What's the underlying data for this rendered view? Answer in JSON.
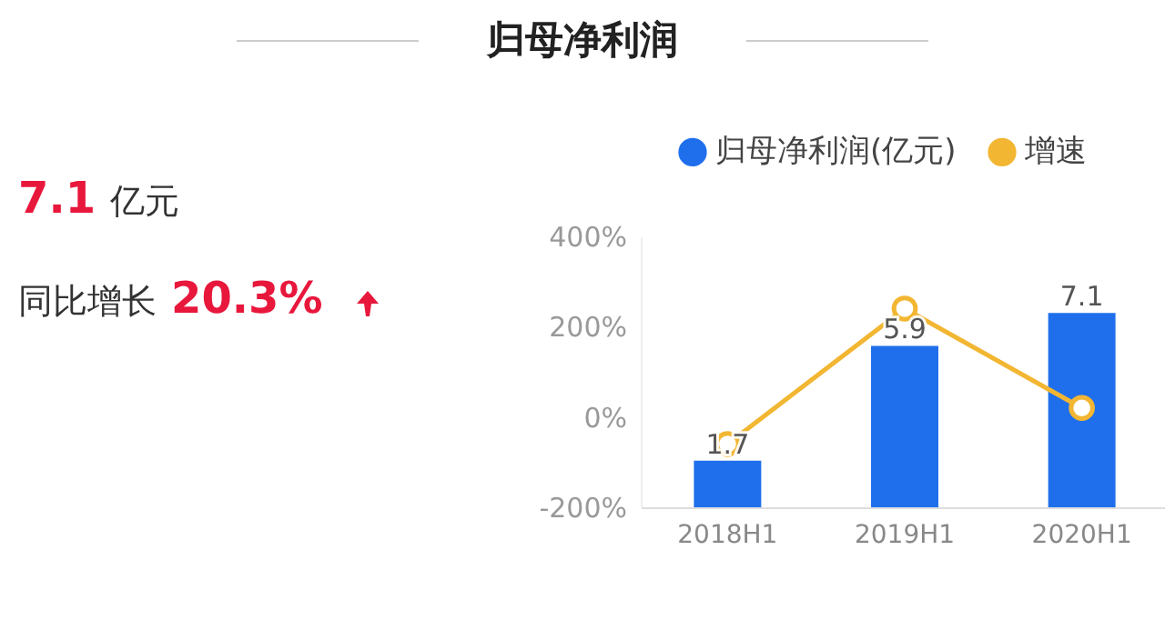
{
  "chart_data": {
    "type": "bar",
    "title": "归母净利润",
    "annotations": [
      "7.1",
      "亿元",
      "同比增长",
      "20.3%"
    ],
    "categories": [
      "2018H1",
      "2019H1",
      "2020H1"
    ],
    "series": [
      {
        "name": "归母净利润(亿元)",
        "axis": "y2",
        "color": "#1f6fec",
        "values": [
          1.7,
          5.9,
          7.1
        ],
        "value_labels": [
          "1.7",
          "5.9",
          "7.1"
        ]
      },
      {
        "name": "增速",
        "type": "line",
        "color": "#f2b632",
        "values": [
          -60,
          240,
          20
        ]
      }
    ],
    "ylim": [
      -200,
      400
    ],
    "yticks": [
      {
        "value": -200,
        "label": "-200%"
      },
      {
        "value": 0,
        "label": "0%"
      },
      {
        "value": 200,
        "label": "200%"
      },
      {
        "value": 400,
        "label": "400%"
      }
    ],
    "y2lim": [
      0,
      9.9
    ],
    "marker": "circle",
    "line_style": "solid",
    "grid": false,
    "legend": "top right"
  }
}
